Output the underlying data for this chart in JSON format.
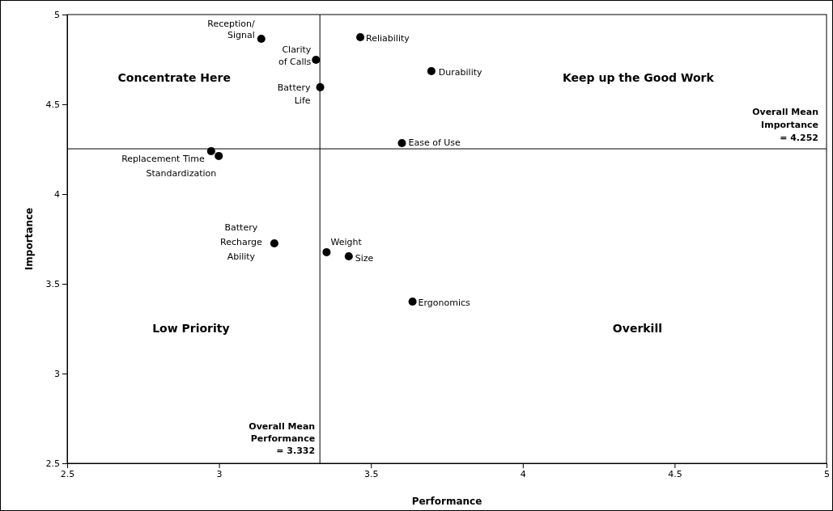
{
  "chart_data": {
    "type": "scatter",
    "xlabel": "Performance",
    "ylabel": "Importance",
    "x": [
      3.139,
      3.465,
      3.319,
      3.699,
      3.333,
      3.602,
      2.974,
      2.999,
      3.182,
      3.354,
      3.427,
      3.637
    ],
    "values": [
      4.865,
      4.874,
      4.748,
      4.685,
      4.595,
      4.284,
      4.239,
      4.212,
      3.725,
      3.676,
      3.653,
      3.401
    ],
    "color": "#000000",
    "marker": "circle",
    "xlim": [
      2.5,
      5
    ],
    "xticks": [
      2.5,
      3,
      3.5,
      4,
      4.5,
      5
    ],
    "ylim": [
      2.5,
      5
    ],
    "yticks": [
      2.5,
      3,
      3.5,
      4,
      4.5,
      5
    ],
    "grid": false,
    "ref_lines": [
      {
        "axis": "x",
        "value": 3.332,
        "label": "Overall Mean\nPerformance\n= 3.332",
        "color": "#000000"
      },
      {
        "axis": "y",
        "value": 4.252,
        "label": "Overall Mean\nImportance\n= 4.252",
        "color": "#000000"
      }
    ],
    "annotations": [
      "Concentrate Here",
      "Keep up the Good Work",
      "Low Priority",
      "Overkill",
      {
        "text": "Reception/\nSignal",
        "x": 3.139,
        "y": 4.865
      },
      {
        "text": "Reliability",
        "x": 3.465,
        "y": 4.874
      },
      {
        "text": "Clarity\nof Calls",
        "x": 3.319,
        "y": 4.748
      },
      {
        "text": "Durability",
        "x": 3.699,
        "y": 4.685
      },
      {
        "text": "Battery\nLife",
        "x": 3.333,
        "y": 4.595
      },
      {
        "text": "Ease of Use",
        "x": 3.602,
        "y": 4.284
      },
      {
        "text": "Replacement Time",
        "x": 2.974,
        "y": 4.239
      },
      {
        "text": "Standardization",
        "x": 2.999,
        "y": 4.212
      },
      {
        "text": "Battery\nRecharge\nAbility",
        "x": 3.182,
        "y": 3.725
      },
      {
        "text": "Weight",
        "x": 3.354,
        "y": 3.676
      },
      {
        "text": "Size",
        "x": 3.427,
        "y": 3.653
      },
      {
        "text": "Ergonomics",
        "x": 3.637,
        "y": 3.401
      }
    ]
  }
}
